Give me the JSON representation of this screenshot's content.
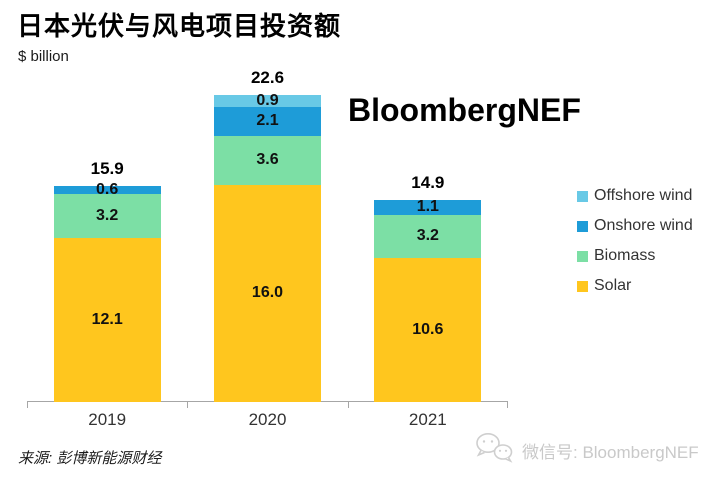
{
  "page": {
    "title": "日本光伏与风电项目投资额",
    "unit_label": "$ billion",
    "brand_watermark": "BloombergNEF",
    "source": "来源: 彭博新能源财经",
    "wechat_label": "微信号: BloombergNEF",
    "wechat_icon": "wechat-logo"
  },
  "colors": {
    "solar": "#FFC61E",
    "biomass": "#7CDFA5",
    "onshore": "#1E9CD8",
    "offshore": "#68C9E6",
    "axis": "#A6A6A6",
    "label_text": "#111111",
    "legend_text": "#333333",
    "watermark_gray": "#C9C9C9"
  },
  "chart_data": {
    "type": "bar",
    "stacked": true,
    "title": "日本光伏与风电项目投资额",
    "ylabel": "$ billion",
    "xlabel": "",
    "grid": false,
    "legend_position": "right",
    "categories": [
      "2019",
      "2020",
      "2021"
    ],
    "series": [
      {
        "name": "Solar",
        "color_key": "solar",
        "values": [
          12.1,
          16.0,
          10.6
        ]
      },
      {
        "name": "Biomass",
        "color_key": "biomass",
        "values": [
          3.2,
          3.6,
          3.2
        ]
      },
      {
        "name": "Onshore wind",
        "color_key": "onshore",
        "values": [
          0.6,
          2.1,
          1.1
        ]
      },
      {
        "name": "Offshore wind",
        "color_key": "offshore",
        "values": [
          0,
          0.9,
          0
        ]
      }
    ],
    "totals": [
      15.9,
      22.6,
      14.9
    ],
    "ylim": [
      0,
      29.6
    ],
    "value_labels_shown": true,
    "legend": [
      {
        "label": "Offshore wind",
        "color_key": "offshore"
      },
      {
        "label": "Onshore wind",
        "color_key": "onshore"
      },
      {
        "label": "Biomass",
        "color_key": "biomass"
      },
      {
        "label": "Solar",
        "color_key": "solar"
      }
    ]
  }
}
